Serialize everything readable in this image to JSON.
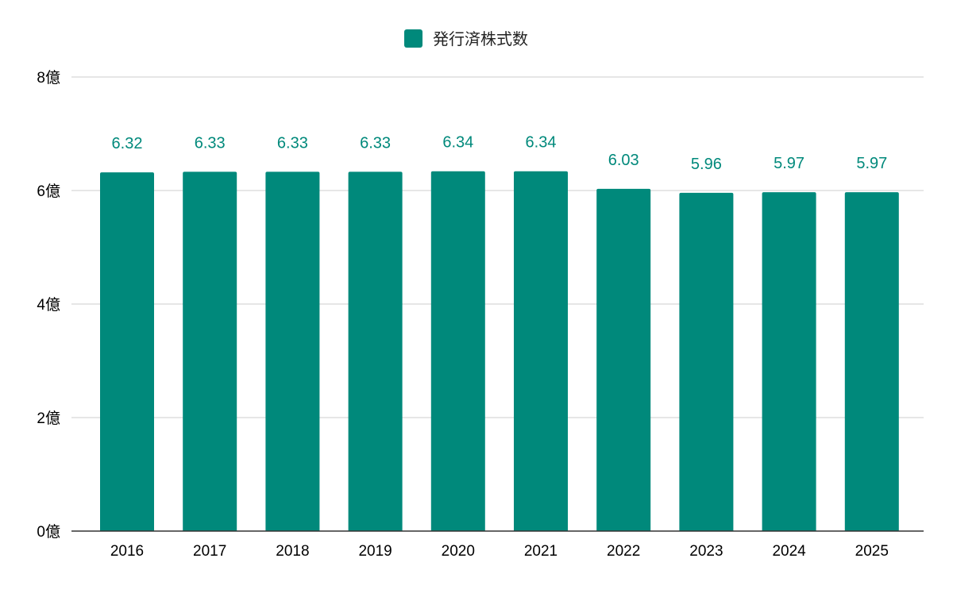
{
  "chart_data": {
    "type": "bar",
    "categories": [
      "2016",
      "2017",
      "2018",
      "2019",
      "2020",
      "2021",
      "2022",
      "2023",
      "2024",
      "2025"
    ],
    "series": [
      {
        "name": "発行済株式数",
        "values": [
          6.32,
          6.33,
          6.33,
          6.33,
          6.34,
          6.34,
          6.03,
          5.96,
          5.97,
          5.97
        ],
        "labels": [
          "6.32",
          "6.33",
          "6.33",
          "6.33",
          "6.34",
          "6.34",
          "6.03",
          "5.96",
          "5.97",
          "5.97"
        ],
        "color": "#00897b"
      }
    ],
    "yticks": [
      0,
      2,
      4,
      6,
      8
    ],
    "ytick_labels": [
      "0億",
      "2億",
      "4億",
      "6億",
      "8億"
    ],
    "ylim": [
      0,
      8
    ],
    "grid": true,
    "legend_position": "top-center",
    "colors": {
      "bar": "#00897b",
      "data_label": "#00897b",
      "grid": "#cccccc",
      "axis": "#333333",
      "text": "#000000"
    }
  }
}
